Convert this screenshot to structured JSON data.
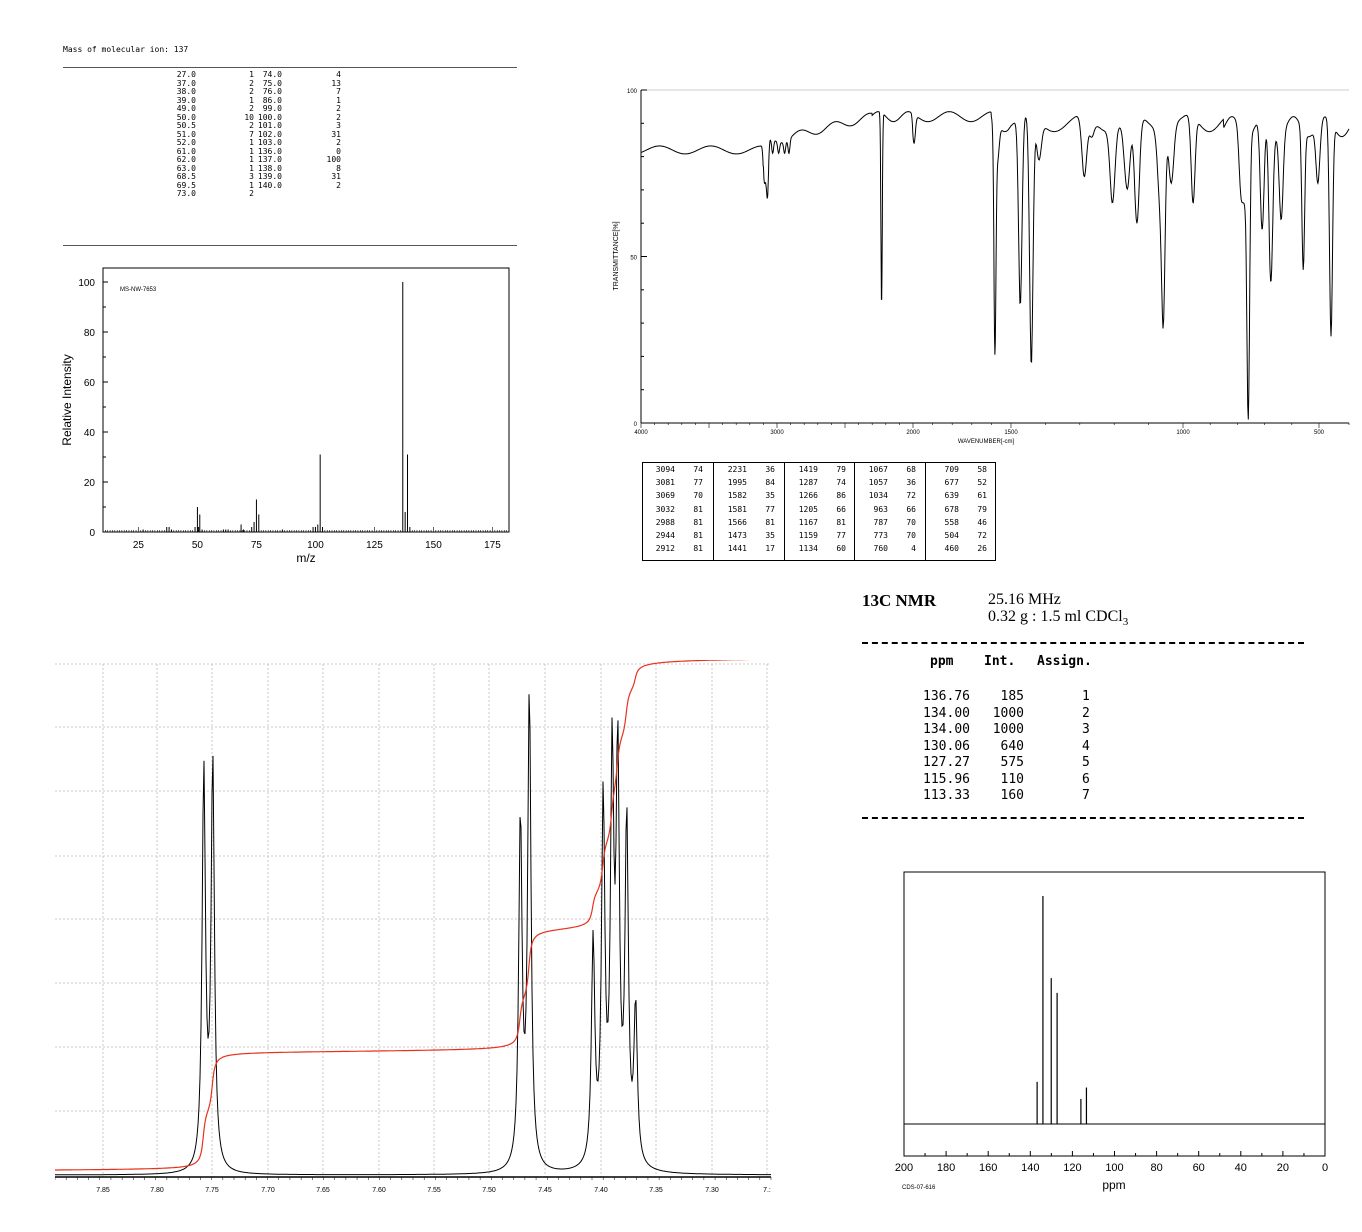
{
  "ms_table": {
    "header": "Mass of molecular ion: 137",
    "rows": [
      [
        "27.0",
        "1",
        "74.0",
        "4"
      ],
      [
        "37.0",
        "2",
        "75.0",
        "13"
      ],
      [
        "38.0",
        "2",
        "76.0",
        "7"
      ],
      [
        "39.0",
        "1",
        "86.0",
        "1"
      ],
      [
        "49.0",
        "2",
        "99.0",
        "2"
      ],
      [
        "50.0",
        "10",
        "100.0",
        "2"
      ],
      [
        "50.5",
        "2",
        "101.0",
        "3"
      ],
      [
        "51.0",
        "7",
        "102.0",
        "31"
      ],
      [
        "52.0",
        "1",
        "103.0",
        "2"
      ],
      [
        "61.0",
        "1",
        "136.0",
        "0"
      ],
      [
        "62.0",
        "1",
        "137.0",
        "100"
      ],
      [
        "63.0",
        "1",
        "138.0",
        "8"
      ],
      [
        "68.5",
        "3",
        "139.0",
        "31"
      ],
      [
        "69.5",
        "1",
        "140.0",
        "2"
      ],
      [
        "73.0",
        "2",
        "",
        ""
      ]
    ]
  },
  "chart_data": [
    {
      "id": "ms",
      "type": "bar",
      "code": "MS-NW-7653",
      "xlabel": "m/z",
      "ylabel": "Relative Intensity",
      "xlim": [
        10,
        182
      ],
      "ylim": [
        0,
        100
      ],
      "xticks": [
        25,
        50,
        75,
        100,
        125,
        150,
        175
      ],
      "yticks": [
        0,
        20,
        40,
        60,
        80,
        100
      ],
      "points": [
        [
          27,
          1
        ],
        [
          37,
          2
        ],
        [
          38,
          2
        ],
        [
          39,
          1
        ],
        [
          49,
          2
        ],
        [
          50,
          10
        ],
        [
          50.5,
          2
        ],
        [
          51,
          7
        ],
        [
          52,
          1
        ],
        [
          61,
          1
        ],
        [
          62,
          1
        ],
        [
          63,
          1
        ],
        [
          68.5,
          3
        ],
        [
          69.5,
          1
        ],
        [
          73,
          2
        ],
        [
          74,
          4
        ],
        [
          75,
          13
        ],
        [
          76,
          7
        ],
        [
          86,
          1
        ],
        [
          99,
          2
        ],
        [
          100,
          2
        ],
        [
          101,
          3
        ],
        [
          102,
          31
        ],
        [
          103,
          2
        ],
        [
          137,
          100
        ],
        [
          138,
          8
        ],
        [
          139,
          31
        ],
        [
          140,
          2
        ]
      ]
    },
    {
      "id": "ir",
      "type": "line",
      "ylabel": "TRANSMITTANCE[%]",
      "xlabel": "WAVENUMBER[-cm]",
      "xticks": [
        4000,
        3000,
        2000,
        1500,
        1000,
        500
      ],
      "yticks": [
        0,
        50,
        100
      ],
      "ylim": [
        0,
        100
      ],
      "peaks": [
        [
          3094,
          74
        ],
        [
          3081,
          77
        ],
        [
          3069,
          70
        ],
        [
          3032,
          81
        ],
        [
          2988,
          81
        ],
        [
          2944,
          81
        ],
        [
          2912,
          81
        ],
        [
          2231,
          36
        ],
        [
          1995,
          84
        ],
        [
          1582,
          35
        ],
        [
          1581,
          77
        ],
        [
          1566,
          81
        ],
        [
          1473,
          35
        ],
        [
          1441,
          17
        ],
        [
          1419,
          79
        ],
        [
          1287,
          74
        ],
        [
          1266,
          86
        ],
        [
          1205,
          66
        ],
        [
          1167,
          81
        ],
        [
          1159,
          77
        ],
        [
          1134,
          60
        ],
        [
          1067,
          68
        ],
        [
          1057,
          36
        ],
        [
          1034,
          72
        ],
        [
          963,
          66
        ],
        [
          787,
          70
        ],
        [
          773,
          70
        ],
        [
          760,
          4
        ],
        [
          709,
          58
        ],
        [
          677,
          52
        ],
        [
          639,
          61
        ],
        [
          678,
          79
        ],
        [
          558,
          46
        ],
        [
          504,
          72
        ],
        [
          460,
          26
        ]
      ]
    },
    {
      "id": "hnmr",
      "type": "line",
      "xlim": [
        7.89,
        7.25
      ],
      "xticks": [
        "7.85",
        "7.80",
        "7.75",
        "7.70",
        "7.65",
        "7.60",
        "7.55",
        "7.50",
        "7.45",
        "7.40",
        "7.35",
        "7.30",
        "7.:"
      ],
      "peaks": [
        [
          7.757,
          0.82
        ],
        [
          7.749,
          0.84
        ],
        [
          7.474,
          0.72
        ],
        [
          7.466,
          0.98
        ],
        [
          7.409,
          0.46
        ],
        [
          7.4,
          0.74
        ],
        [
          7.392,
          0.8
        ],
        [
          7.387,
          0.81
        ],
        [
          7.379,
          0.7
        ],
        [
          7.371,
          0.32
        ]
      ],
      "integral_color": "#e8321e"
    },
    {
      "id": "cnmr",
      "type": "bar",
      "code": "CDS-07-616",
      "xlabel": "ppm",
      "xlim": [
        200,
        0
      ],
      "xticks": [
        200,
        180,
        160,
        140,
        120,
        100,
        80,
        60,
        40,
        20,
        0
      ],
      "points": [
        [
          136.76,
          185
        ],
        [
          134.0,
          1000
        ],
        [
          130.06,
          640
        ],
        [
          127.27,
          575
        ],
        [
          115.96,
          110
        ],
        [
          113.33,
          160
        ]
      ]
    }
  ],
  "ir_table": [
    [
      [
        "3094",
        "74"
      ],
      [
        "3081",
        "77"
      ],
      [
        "3069",
        "70"
      ],
      [
        "3032",
        "81"
      ],
      [
        "2988",
        "81"
      ],
      [
        "2944",
        "81"
      ],
      [
        "2912",
        "81"
      ]
    ],
    [
      [
        "2231",
        "36"
      ],
      [
        "1995",
        "84"
      ],
      [
        "1582",
        "35"
      ],
      [
        "1581",
        "77"
      ],
      [
        "1566",
        "81"
      ],
      [
        "1473",
        "35"
      ],
      [
        "1441",
        "17"
      ]
    ],
    [
      [
        "1419",
        "79"
      ],
      [
        "1287",
        "74"
      ],
      [
        "1266",
        "86"
      ],
      [
        "1205",
        "66"
      ],
      [
        "1167",
        "81"
      ],
      [
        "1159",
        "77"
      ],
      [
        "1134",
        "60"
      ]
    ],
    [
      [
        "1067",
        "68"
      ],
      [
        "1057",
        "36"
      ],
      [
        "1034",
        "72"
      ],
      [
        "963",
        "66"
      ],
      [
        "787",
        "70"
      ],
      [
        "773",
        "70"
      ],
      [
        "760",
        "4"
      ]
    ],
    [
      [
        "709",
        "58"
      ],
      [
        "677",
        "52"
      ],
      [
        "639",
        "61"
      ],
      [
        "678",
        "79"
      ],
      [
        "558",
        "46"
      ],
      [
        "504",
        "72"
      ],
      [
        "460",
        "26"
      ]
    ]
  ],
  "c13_info": {
    "title": "13C NMR",
    "freq": "25.16 MHz",
    "sample": "0.32 g : 1.5 ml CDCl",
    "sample_sub": "3",
    "col_ppm": "ppm",
    "col_int": "Int.",
    "col_assign": "Assign.",
    "rows": [
      [
        "136.76",
        "185",
        "1"
      ],
      [
        "134.00",
        "1000",
        "2"
      ],
      [
        "134.00",
        "1000",
        "3"
      ],
      [
        "130.06",
        "640",
        "4"
      ],
      [
        "127.27",
        "575",
        "5"
      ],
      [
        "115.96",
        "110",
        "6"
      ],
      [
        "113.33",
        "160",
        "7"
      ]
    ]
  }
}
